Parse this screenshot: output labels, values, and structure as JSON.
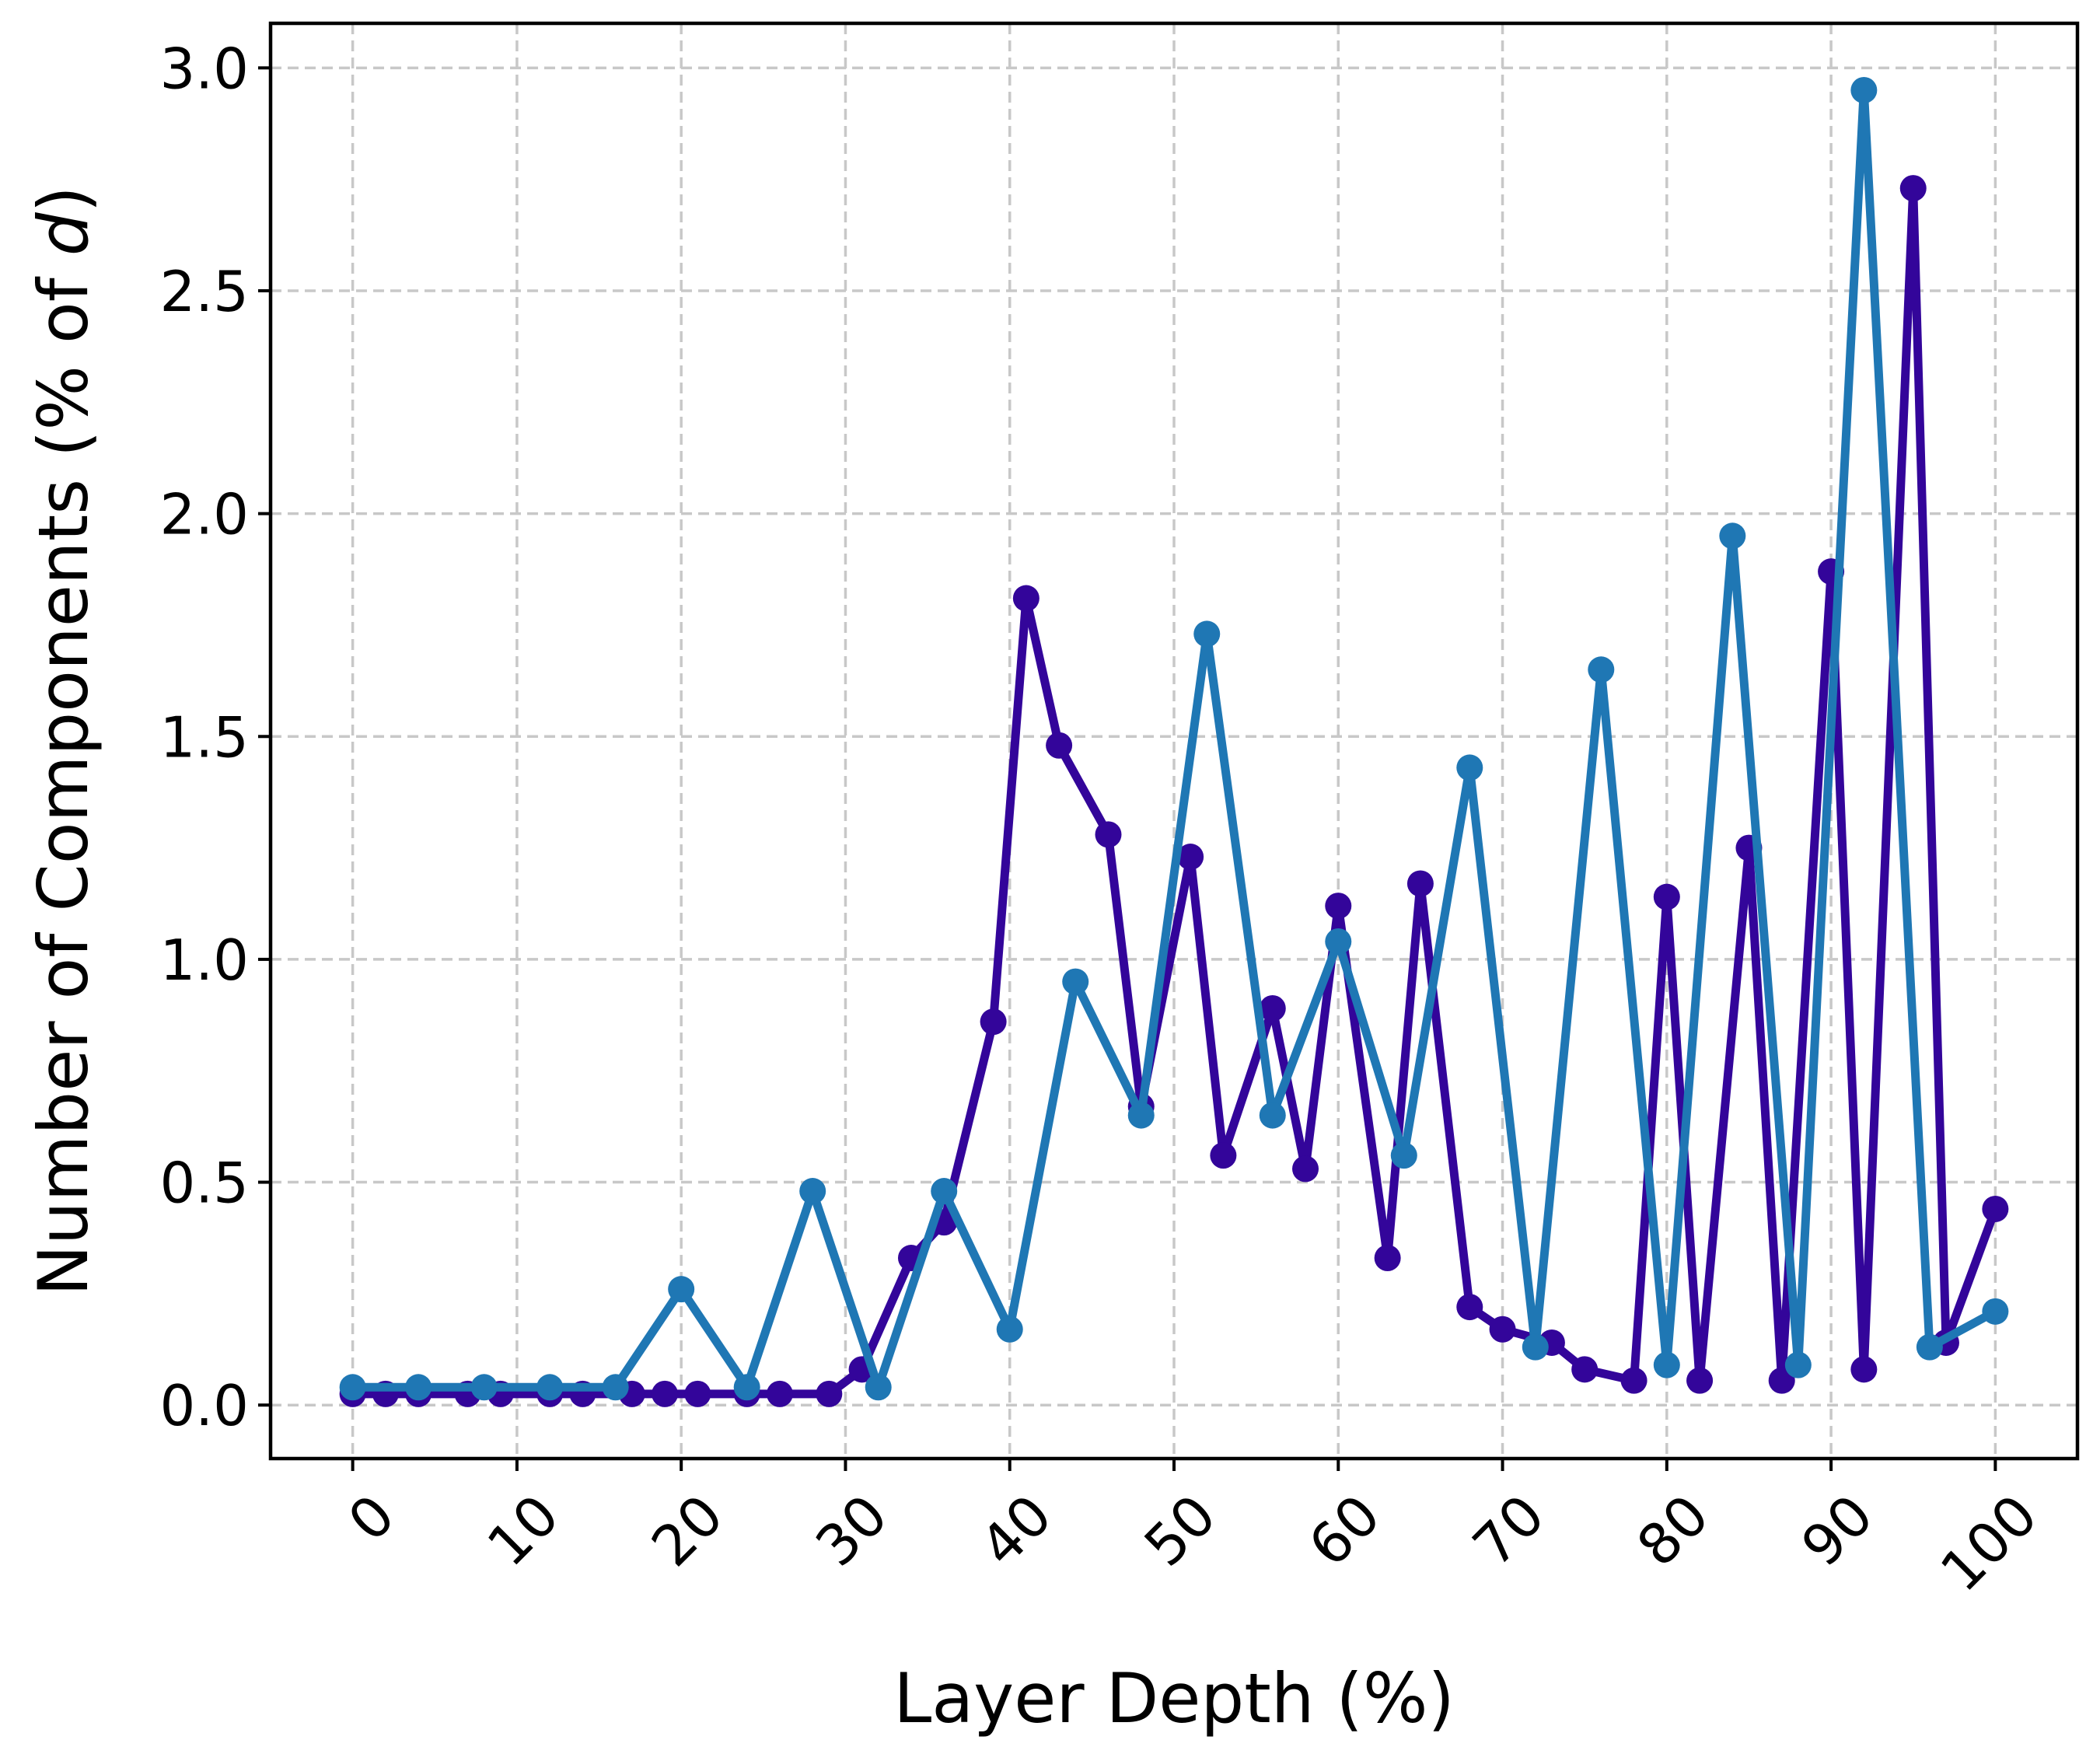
{
  "chart_data": {
    "type": "line",
    "title": "",
    "xlabel": "Layer Depth (%)",
    "ylabel_prefix": "Number of Components (% of ",
    "ylabel_italic": "d",
    "ylabel_suffix": ")",
    "xlim": [
      -5,
      105
    ],
    "ylim": [
      -0.12,
      3.1
    ],
    "xticks": [
      0,
      10,
      20,
      30,
      40,
      50,
      60,
      70,
      80,
      90,
      100
    ],
    "yticks": [
      0.0,
      0.5,
      1.0,
      1.5,
      2.0,
      2.5,
      3.0
    ],
    "ytick_labels": [
      "0.0",
      "0.5",
      "1.0",
      "1.5",
      "2.0",
      "2.5",
      "3.0"
    ],
    "grid": true,
    "legend": "none",
    "series": [
      {
        "color": "#33059a",
        "x": [
          0,
          2,
          4,
          7,
          9,
          12,
          14,
          17,
          19,
          21,
          24,
          26,
          29,
          31,
          34,
          36,
          39,
          41,
          43,
          46,
          48,
          51,
          53,
          56,
          58,
          60,
          63,
          65,
          68,
          70,
          73,
          75,
          78,
          80,
          82,
          85,
          87,
          90,
          92,
          95,
          97,
          100
        ],
        "y": [
          0.025,
          0.025,
          0.025,
          0.025,
          0.025,
          0.025,
          0.025,
          0.025,
          0.025,
          0.025,
          0.025,
          0.025,
          0.025,
          0.08,
          0.33,
          0.41,
          0.86,
          1.81,
          1.48,
          1.28,
          0.67,
          1.23,
          0.56,
          0.89,
          0.53,
          1.12,
          0.33,
          1.17,
          0.22,
          0.17,
          0.14,
          0.08,
          0.055,
          1.14,
          0.055,
          1.25,
          0.055,
          1.87,
          0.08,
          2.73,
          0.14,
          0.44
        ]
      },
      {
        "color": "#1f77b4",
        "x": [
          0,
          4,
          8,
          12,
          16,
          20,
          24,
          28,
          32,
          36,
          40,
          44,
          48,
          52,
          56,
          60,
          64,
          68,
          72,
          76,
          80,
          84,
          88,
          92,
          96,
          100
        ],
        "y": [
          0.04,
          0.04,
          0.04,
          0.04,
          0.04,
          0.26,
          0.04,
          0.48,
          0.04,
          0.48,
          0.17,
          0.95,
          0.65,
          1.73,
          0.65,
          1.04,
          0.56,
          1.43,
          0.13,
          1.65,
          0.09,
          1.95,
          0.09,
          2.95,
          0.13,
          0.21
        ]
      }
    ]
  }
}
